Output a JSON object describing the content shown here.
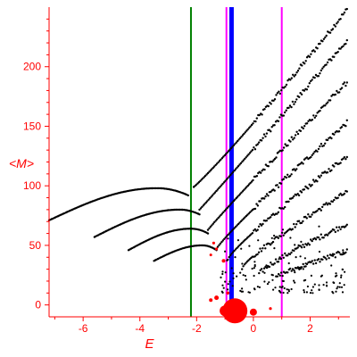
{
  "chart_data": {
    "type": "scatter",
    "title": "",
    "xlabel": "E",
    "ylabel": "<M>",
    "xlim": [
      -7.2,
      3.4
    ],
    "ylim": [
      -10,
      250
    ],
    "xticks": [
      -6,
      -4,
      -2,
      0,
      2
    ],
    "yticks": [
      0,
      50,
      100,
      150,
      200
    ],
    "grid": false,
    "legend": "none",
    "colors": {
      "axis": "#ff0000",
      "points": "#000000",
      "highlight": "#ff0000",
      "green_line": "#008000",
      "blue_line": "#0000ff",
      "magenta_line": "#ff00ff"
    },
    "vertical_lines": [
      {
        "x": -2.2,
        "color": "#008000",
        "width": 2
      },
      {
        "x": -0.95,
        "color": "#ff00ff",
        "width": 2
      },
      {
        "x": -0.77,
        "color": "#0000ff",
        "width": 5
      },
      {
        "x": 1.0,
        "color": "#ff00ff",
        "width": 2
      }
    ],
    "bands": [
      {
        "kind": "hump",
        "x0": -7.2,
        "x1": -2.3,
        "peak_x": -3.4,
        "y0": 71,
        "y_peak": 98,
        "y_end": 92
      },
      {
        "kind": "hump",
        "x0": -5.6,
        "x1": -1.9,
        "peak_x": -2.6,
        "y0": 57,
        "y_peak": 80,
        "y_end": 76
      },
      {
        "kind": "hump",
        "x0": -4.4,
        "x1": -1.6,
        "peak_x": -2.2,
        "y0": 46,
        "y_peak": 64,
        "y_end": 60
      },
      {
        "kind": "hump",
        "x0": -3.5,
        "x1": -1.3,
        "peak_x": -1.8,
        "y0": 37,
        "y_peak": 50,
        "y_end": 46
      },
      {
        "kind": "fan",
        "x0": -2.1,
        "x1": 3.3,
        "y0": 99,
        "y1": 248,
        "pow": 0.8
      },
      {
        "kind": "fan",
        "x0": -1.9,
        "x1": 3.3,
        "y0": 80,
        "y1": 222,
        "pow": 0.95
      },
      {
        "kind": "fan",
        "x0": -1.6,
        "x1": 3.3,
        "y0": 63,
        "y1": 187,
        "pow": 1.1
      },
      {
        "kind": "fan",
        "x0": -1.3,
        "x1": 3.3,
        "y0": 47,
        "y1": 153,
        "pow": 1.3
      },
      {
        "kind": "fan",
        "x0": -0.9,
        "x1": 3.3,
        "y0": 38,
        "y1": 125,
        "pow": 1.5
      },
      {
        "kind": "fan",
        "x0": -0.4,
        "x1": 3.3,
        "y0": 30,
        "y1": 95,
        "pow": 1.8
      },
      {
        "kind": "fan",
        "x0": 0.2,
        "x1": 3.3,
        "y0": 25,
        "y1": 68,
        "pow": 2.0
      },
      {
        "kind": "fan",
        "x0": 0.8,
        "x1": 3.3,
        "y0": 22,
        "y1": 45,
        "pow": 2.2
      }
    ],
    "red_points": [
      {
        "x": -0.65,
        "y": -5,
        "r": 14
      },
      {
        "x": -1.0,
        "y": -5,
        "r": 6
      },
      {
        "x": 0.0,
        "y": -6,
        "r": 4
      },
      {
        "x": -1.5,
        "y": 4,
        "r": 2
      },
      {
        "x": -1.3,
        "y": 6,
        "r": 2.5
      },
      {
        "x": -0.9,
        "y": 10,
        "r": 1.8
      },
      {
        "x": -1.05,
        "y": 37,
        "r": 2
      },
      {
        "x": -1.4,
        "y": 52,
        "r": 1.6
      },
      {
        "x": -1.3,
        "y": 47,
        "r": 1.6
      },
      {
        "x": -1.5,
        "y": 42,
        "r": 1.5
      },
      {
        "x": 0.6,
        "y": -3,
        "r": 1.6
      }
    ]
  }
}
